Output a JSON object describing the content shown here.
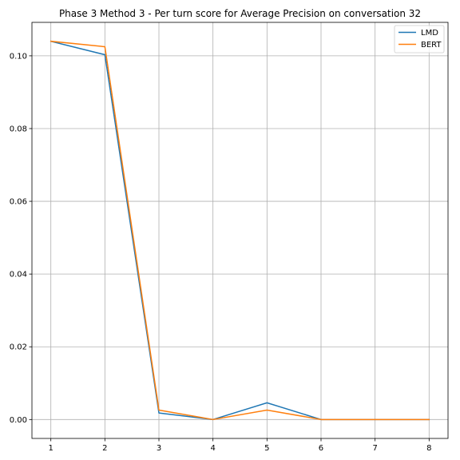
{
  "chart_data": {
    "type": "line",
    "title": "Phase 3 Method 3 - Per turn score for Average Precision on conversation 32",
    "xlabel": "",
    "ylabel": "",
    "x": [
      1,
      2,
      3,
      4,
      5,
      6,
      7,
      8
    ],
    "x_ticks": [
      "1",
      "2",
      "3",
      "4",
      "5",
      "6",
      "7",
      "8"
    ],
    "y_ticks": [
      "0.00",
      "0.02",
      "0.04",
      "0.06",
      "0.08",
      "0.10"
    ],
    "xlim": [
      0.65,
      8.35
    ],
    "ylim": [
      -0.0052,
      0.1092
    ],
    "grid": true,
    "legend_position": "top-right",
    "series": [
      {
        "name": "LMD",
        "color": "#1f77b4",
        "values": [
          0.104,
          0.1003,
          0.0018,
          0.0,
          0.0046,
          0.0,
          0.0,
          0.0
        ]
      },
      {
        "name": "BERT",
        "color": "#ff7f0e",
        "values": [
          0.104,
          0.1025,
          0.0026,
          0.0,
          0.0026,
          0.0,
          0.0,
          0.0
        ]
      }
    ]
  }
}
